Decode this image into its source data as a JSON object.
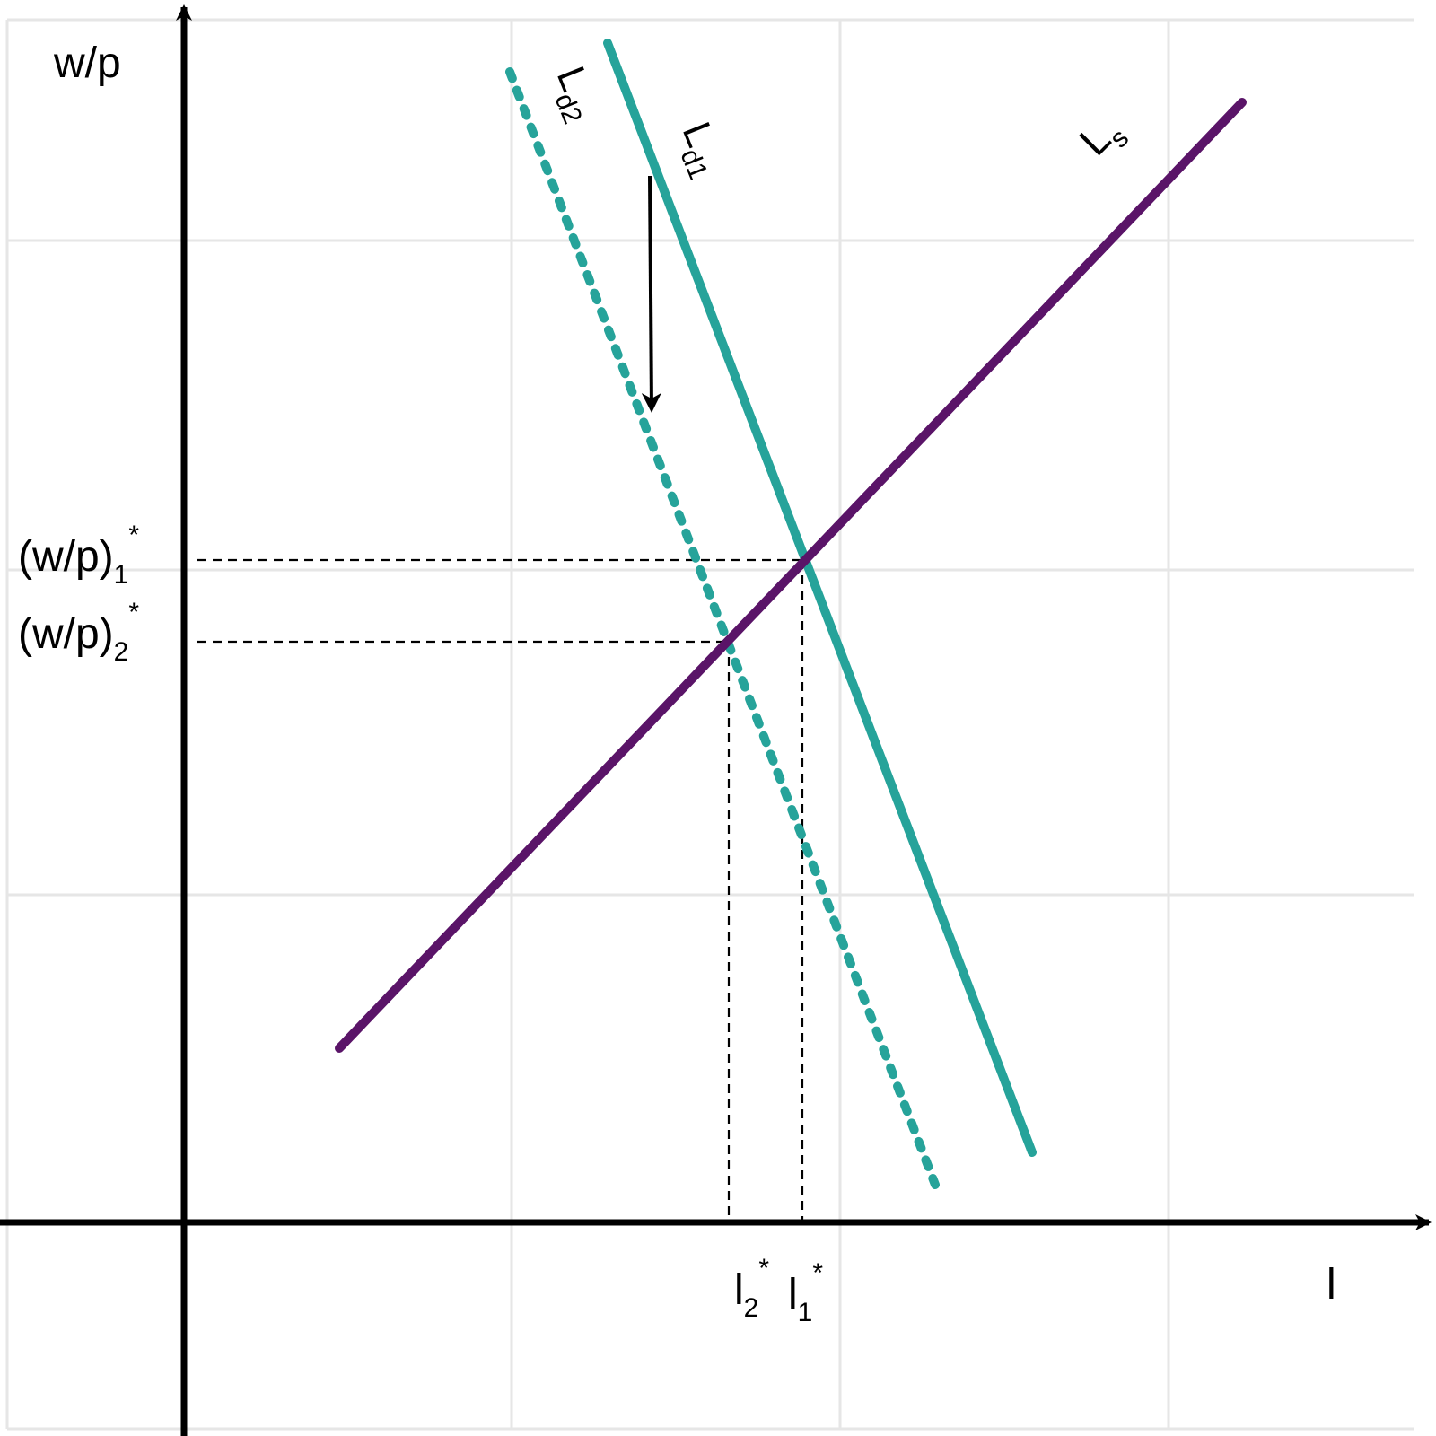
{
  "colors": {
    "supply": "#5a1468",
    "demand": "#26a39a",
    "axis": "#000000",
    "grid": "#e6e6e6"
  },
  "axes": {
    "y_label": "w/p",
    "x_label": "l"
  },
  "curves": {
    "ls": {
      "main": "L",
      "sub": "s",
      "style": "solid"
    },
    "ld1": {
      "main": "L",
      "sub": "d1",
      "style": "solid"
    },
    "ld2": {
      "main": "L",
      "sub": "d2",
      "style": "dotted"
    }
  },
  "equilibria": {
    "w1": {
      "base": "(w/p)",
      "sub": "1",
      "sup": "*"
    },
    "w2": {
      "base": "(w/p)",
      "sub": "2",
      "sup": "*"
    },
    "l1": {
      "base": "l",
      "sub": "1",
      "sup": "*"
    },
    "l2": {
      "base": "l",
      "sub": "2",
      "sup": "*"
    }
  },
  "shift": {
    "direction": "down",
    "arrow_icon": "down-arrow-icon"
  }
}
